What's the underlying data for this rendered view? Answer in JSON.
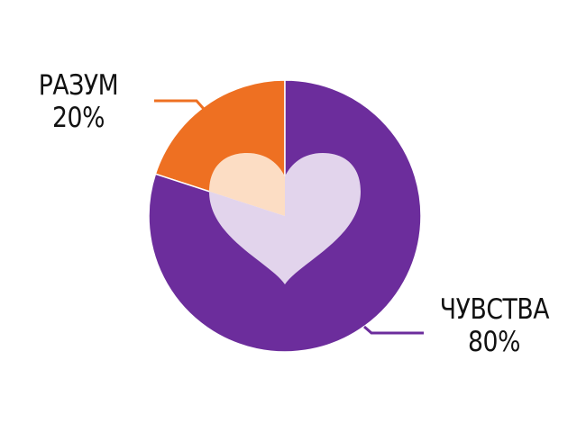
{
  "chart_data": {
    "type": "pie",
    "title": "",
    "series": [
      {
        "labels": [
          "РАЗУМ",
          "ЧУВСТВА"
        ],
        "values": [
          20,
          80
        ],
        "value_labels": [
          "20%",
          "80%"
        ],
        "colors": [
          "#EE7022",
          "#6C2D9C"
        ]
      }
    ],
    "start_angle_deg": 0,
    "direction": "counterclockwise",
    "center_decoration": "heart-icon",
    "heart_colors": [
      "#FCDDC4",
      "#E2D4EC"
    ]
  }
}
